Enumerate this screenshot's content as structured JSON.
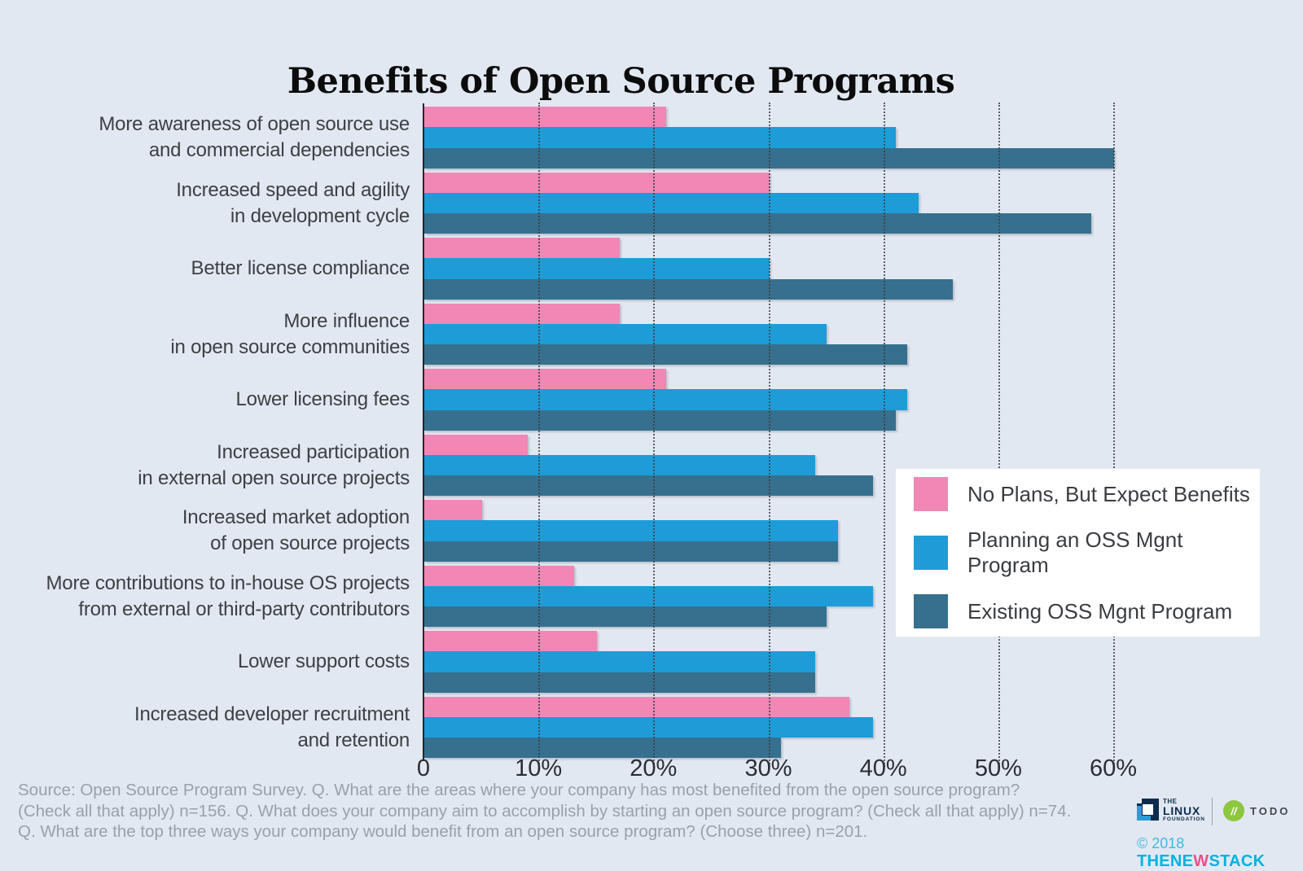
{
  "chart_data": {
    "type": "bar",
    "orientation": "horizontal",
    "title": "Benefits of Open Source Programs",
    "xlabel": "",
    "ylabel": "",
    "xlim": [
      0,
      60
    ],
    "x_unit": "%",
    "x_tick_labels": [
      "0",
      "10%",
      "20%",
      "30%",
      "40%",
      "50%",
      "60%"
    ],
    "grid": "vertical-dotted",
    "legend_position": "middle-right",
    "categories": [
      [
        "More awareness of open source use",
        "and commercial dependencies"
      ],
      [
        "Increased speed and agility",
        "in development cycle"
      ],
      [
        "Better license compliance"
      ],
      [
        "More influence",
        "in open source communities"
      ],
      [
        "Lower licensing fees"
      ],
      [
        "Increased participation",
        "in external open source projects"
      ],
      [
        "Increased market adoption",
        "of open source projects"
      ],
      [
        "More contributions to in-house OS projects",
        "from external or third-party contributors"
      ],
      [
        "Lower support costs"
      ],
      [
        "Increased developer recruitment",
        "and retention"
      ]
    ],
    "series": [
      {
        "name": "No Plans, But Expect Benefits",
        "color": "#f087b4",
        "values": [
          21,
          30,
          17,
          17,
          21,
          9,
          5,
          13,
          15,
          37
        ]
      },
      {
        "name": "Planning an OSS Mgnt Program",
        "color": "#1e9cd7",
        "values": [
          41,
          43,
          30,
          35,
          42,
          34,
          36,
          39,
          34,
          39
        ]
      },
      {
        "name": "Existing OSS Mgnt Program",
        "color": "#36708e",
        "values": [
          60,
          58,
          46,
          42,
          41,
          39,
          36,
          35,
          34,
          31
        ]
      }
    ]
  },
  "footer": {
    "lines": [
      "Source: Open Source Program Survey. Q. What are the areas where your company has most benefited from the open source program?",
      "(Check all that apply) n=156. Q. What does your company aim to accomplish by starting an open source program? (Check all that apply) n=74.",
      "Q. What are the top three ways your company would benefit from an open source program? (Choose three) n=201."
    ]
  },
  "branding": {
    "linux_foundation": {
      "the": "THE",
      "linux": "LINUX",
      "foundation": "FOUNDATION"
    },
    "todo": {
      "slashes": "//",
      "label": "TODO"
    },
    "newstack": {
      "copyright": "© 2018",
      "part1": "THENE",
      "part2": "W",
      "part3": "STACK"
    }
  },
  "colors": {
    "background": "#e2e8f1",
    "legend_background": "#ffffff",
    "axis": "#23262b",
    "gridline": "#3a3c42",
    "title_text": "#0c0c0c",
    "category_text": "#3d4044",
    "source_text": "#98a1ab",
    "series_pink": "#f087b4",
    "series_light_blue": "#1e9cd7",
    "series_dark_blue": "#36708e",
    "lf_navy": "#0d2c4e",
    "lf_blue": "#2e9bd6",
    "todo_green": "#8dc63f",
    "tns_cyan": "#00b2e0",
    "tns_pink": "#ed4e8b"
  }
}
